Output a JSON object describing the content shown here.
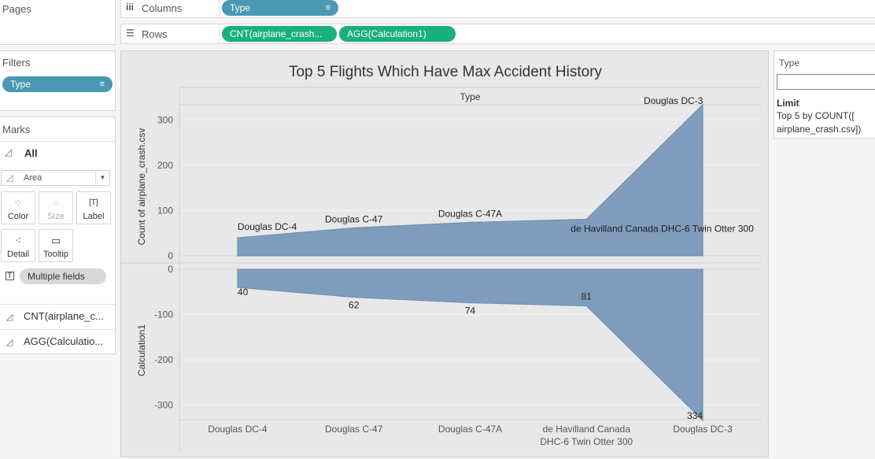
{
  "pages": {
    "label": "Pages"
  },
  "shelves": {
    "columns": {
      "label": "Columns",
      "pills": [
        "Type"
      ]
    },
    "rows": {
      "label": "Rows",
      "pills": [
        "CNT(airplane_crash...",
        "AGG(Calculation1)"
      ]
    }
  },
  "filters": {
    "label": "Filters",
    "pill": "Type"
  },
  "marks": {
    "label": "Marks",
    "all_label": "All",
    "mark_type": "Area",
    "buttons": {
      "color": "Color",
      "size": "Size",
      "label": "Label",
      "detail": "Detail",
      "tooltip": "Tooltip"
    },
    "multiple_fields": "Multiple fields",
    "fields": [
      "CNT(airplane_c...",
      "AGG(Calculatio..."
    ]
  },
  "right_panel": {
    "type_label": "Type",
    "type_input_value": "",
    "limit_label": "Limit",
    "limit_line1": "Top 5 by COUNT([",
    "limit_line2": "airplane_crash.csv])"
  },
  "colors": {
    "area_fill": "#7f9cbc",
    "pill_blue": "#4a98b2",
    "pill_green": "#19b07e",
    "chart_bg": "#e8e8e8"
  },
  "chart_data": {
    "type": "area",
    "title": "Top 5 Flights Which Have Max Accident History",
    "column_header": "Type",
    "categories": [
      "Douglas DC-4",
      "Douglas C-47",
      "Douglas C-47A",
      "de Havilland Canada DHC-6 Twin Otter 300",
      "Douglas DC-3"
    ],
    "category_tick_labels": [
      [
        "Douglas DC-4"
      ],
      [
        "Douglas C-47"
      ],
      [
        "Douglas C-47A"
      ],
      [
        "de Havilland Canada",
        "DHC-6 Twin Otter 300"
      ],
      [
        "Douglas DC-3"
      ]
    ],
    "panes": [
      {
        "ylabel": "Count of airplane_crash.csv",
        "values": [
          40,
          62,
          74,
          81,
          334
        ],
        "ylim": [
          0,
          330
        ],
        "yticks": [
          0,
          100,
          200,
          300
        ],
        "data_labels": [
          "Douglas DC-4",
          "Douglas C-47",
          "Douglas C-47A",
          "de Havilland Canada DHC-6 Twin Otter 300",
          "Douglas DC-3"
        ]
      },
      {
        "ylabel": "Calculation1",
        "values": [
          -40,
          -62,
          -74,
          -81,
          -334
        ],
        "ylim": [
          -330,
          0
        ],
        "yticks": [
          0,
          -100,
          -200,
          -300
        ],
        "data_labels": [
          "40",
          "62",
          "74",
          "81",
          "334"
        ]
      }
    ],
    "grid": true
  }
}
